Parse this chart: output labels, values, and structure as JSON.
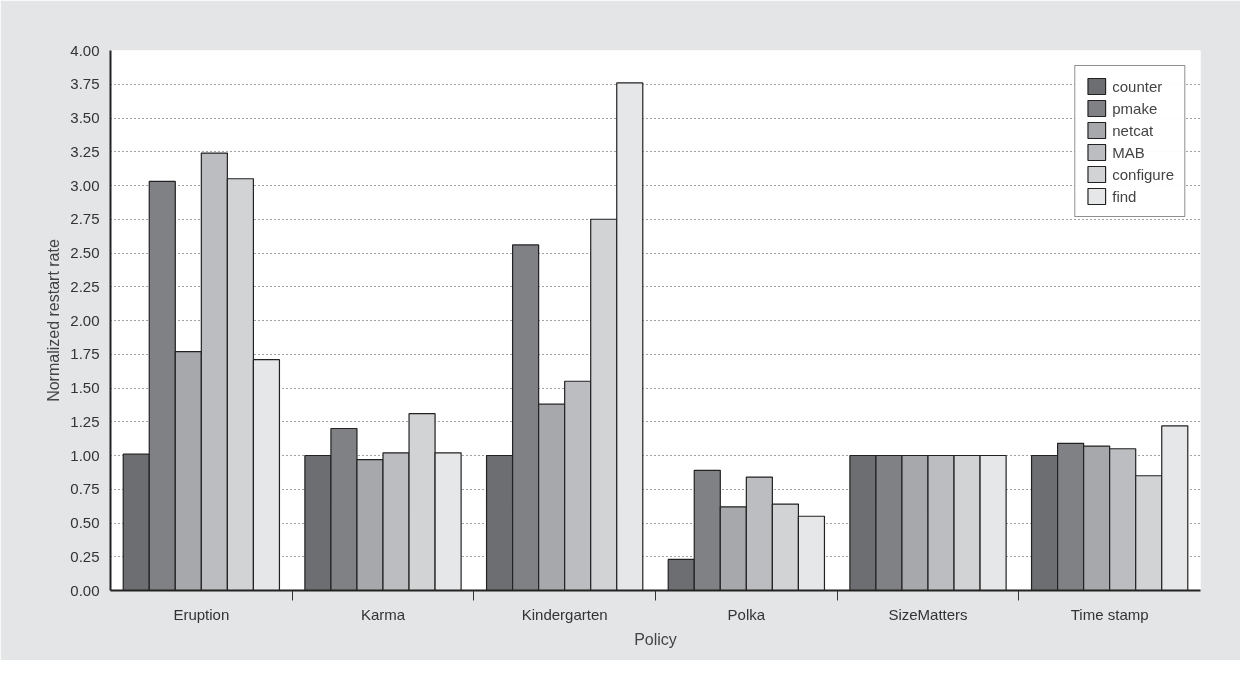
{
  "chart_data": {
    "type": "bar",
    "xlabel": "Policy",
    "ylabel": "Normalized restart rate",
    "categories": [
      "Eruption",
      "Karma",
      "Kindergarten",
      "Polka",
      "SizeMatters",
      "Time stamp"
    ],
    "series": [
      {
        "name": "counter",
        "color": "#6d6e72",
        "values": [
          1.01,
          1.0,
          1.0,
          0.23,
          1.0,
          1.0
        ]
      },
      {
        "name": "pmake",
        "color": "#808185",
        "values": [
          3.03,
          1.2,
          2.56,
          0.89,
          1.0,
          1.09
        ]
      },
      {
        "name": "netcat",
        "color": "#a7a8ab",
        "values": [
          1.77,
          0.97,
          1.38,
          0.62,
          1.0,
          1.07
        ]
      },
      {
        "name": "MAB",
        "color": "#bcbdc0",
        "values": [
          3.24,
          1.02,
          1.55,
          0.84,
          1.0,
          1.05
        ]
      },
      {
        "name": "configure",
        "color": "#d2d3d5",
        "values": [
          3.05,
          1.31,
          2.75,
          0.64,
          1.0,
          0.85
        ]
      },
      {
        "name": "find",
        "color": "#e6e7e8",
        "values": [
          1.71,
          1.02,
          3.76,
          0.55,
          1.0,
          1.22
        ]
      }
    ],
    "ylim": [
      0,
      4
    ],
    "yticks": [
      {
        "value": 0,
        "label": "0.00"
      },
      {
        "value": 0.25,
        "label": "0.25"
      },
      {
        "value": 0.5,
        "label": "0.50"
      },
      {
        "value": 0.75,
        "label": "0.75"
      },
      {
        "value": 1,
        "label": "1.00"
      },
      {
        "value": 1.25,
        "label": "1.25"
      },
      {
        "value": 1.5,
        "label": "1.50"
      },
      {
        "value": 1.75,
        "label": "1.75"
      },
      {
        "value": 2,
        "label": "2.00"
      },
      {
        "value": 2.25,
        "label": "2.25"
      },
      {
        "value": 2.5,
        "label": "2.50"
      },
      {
        "value": 2.75,
        "label": "2.75"
      },
      {
        "value": 3,
        "label": "3.00"
      },
      {
        "value": 3.25,
        "label": "3.25"
      },
      {
        "value": 3.5,
        "label": "3.50"
      },
      {
        "value": 3.75,
        "label": "3.75"
      },
      {
        "value": 4,
        "label": "4.00"
      }
    ],
    "grid": "y",
    "legend": "top right"
  }
}
